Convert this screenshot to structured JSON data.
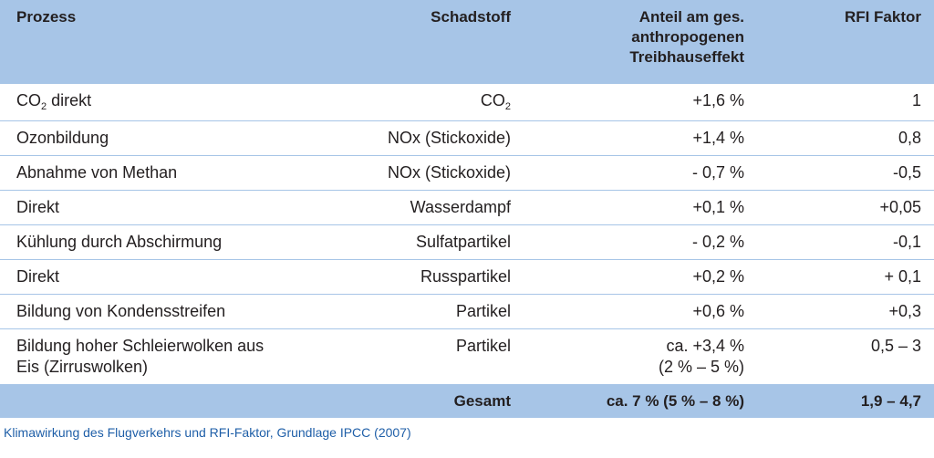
{
  "header": {
    "prozess": "Prozess",
    "schadstoff": "Schadstoff",
    "anteil_l1": "Anteil am ges.",
    "anteil_l2": "anthropogenen",
    "anteil_l3": "Treibhauseffekt",
    "rfi": "RFI Faktor"
  },
  "rows": [
    {
      "prozess": "CO",
      "prozess_sub": "2",
      "prozess_rest": " direkt",
      "schadstoff": "CO",
      "schadstoff_sub": "2",
      "anteil": "+1,6 %",
      "rfi": "1"
    },
    {
      "prozess": "Ozonbildung",
      "schadstoff": "NOx (Stickoxide)",
      "anteil": "+1,4 %",
      "rfi": "0,8"
    },
    {
      "prozess": "Abnahme von Methan",
      "schadstoff": "NOx (Stickoxide)",
      "anteil": "- 0,7 %",
      "rfi": "-0,5"
    },
    {
      "prozess": "Direkt",
      "schadstoff": "Wasserdampf",
      "anteil": "+0,1 %",
      "rfi": "+0,05"
    },
    {
      "prozess": "Kühlung durch Abschirmung",
      "schadstoff": "Sulfatpartikel",
      "anteil": "- 0,2 %",
      "rfi": "-0,1"
    },
    {
      "prozess": "Direkt",
      "schadstoff": "Russpartikel",
      "anteil": "+0,2 %",
      "rfi": "+ 0,1"
    },
    {
      "prozess": "Bildung von Kondensstreifen",
      "schadstoff": "Partikel",
      "anteil": "+0,6 %",
      "rfi": "+0,3"
    },
    {
      "prozess_l1": "Bildung hoher Schleierwolken aus",
      "prozess_l2": "Eis (Zirruswolken)",
      "schadstoff": "Partikel",
      "anteil_l1": "ca. +3,4 %",
      "anteil_l2": "(2 % – 5 %)",
      "rfi": "0,5 – 3"
    }
  ],
  "footer": {
    "label": "Gesamt",
    "anteil": "ca. 7 % (5 % – 8 %)",
    "rfi": "1,9 – 4,7"
  },
  "caption": "Klimawirkung des Flugverkehrs und RFI-Faktor, Grundlage IPCC (2007)"
}
